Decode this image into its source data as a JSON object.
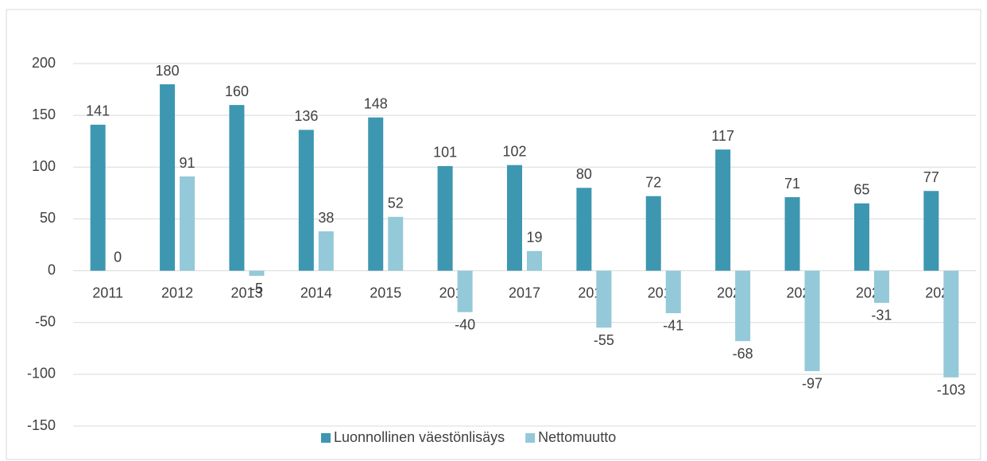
{
  "chart_data": {
    "type": "bar",
    "categories": [
      "2011",
      "2012",
      "2013",
      "2014",
      "2015",
      "2016",
      "2017",
      "2018",
      "2019",
      "2020",
      "2021",
      "2022",
      "2023"
    ],
    "series": [
      {
        "name": "Luonnollinen väestönlisäys",
        "color": "#3d97b0",
        "values": [
          141,
          180,
          160,
          136,
          148,
          101,
          102,
          80,
          72,
          117,
          71,
          65,
          77
        ]
      },
      {
        "name": "Nettomuutto",
        "color": "#93c9d8",
        "values": [
          0,
          91,
          -5,
          38,
          52,
          -40,
          19,
          -55,
          -41,
          -68,
          -97,
          -31,
          -103
        ]
      }
    ],
    "ylim": [
      -150,
      200
    ],
    "yticks": [
      -150,
      -100,
      -50,
      0,
      50,
      100,
      150,
      200
    ],
    "grid": true,
    "legend": "bottom"
  }
}
